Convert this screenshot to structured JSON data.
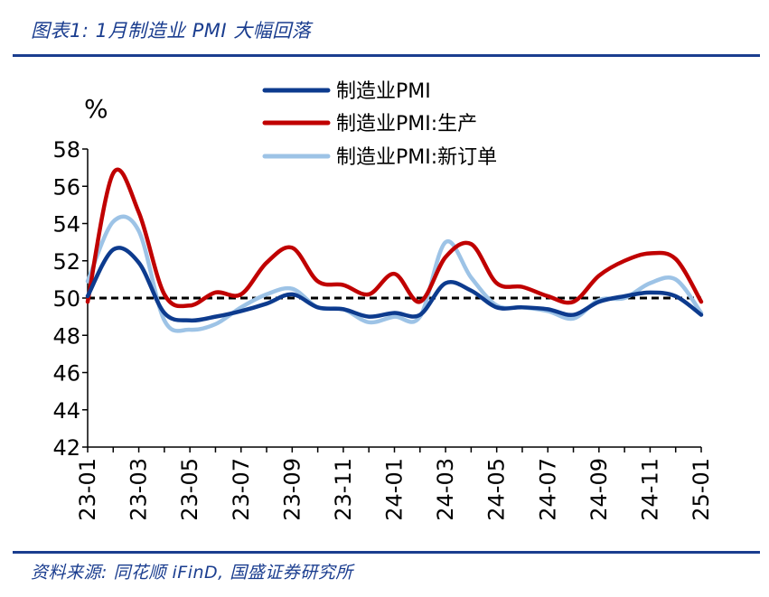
{
  "header": {
    "title": "图表1: 1月制造业 PMI 大幅回落"
  },
  "footer": {
    "source": "资料来源: 同花顺 iFinD, 国盛证券研究所"
  },
  "chart_data": {
    "type": "line",
    "title": "",
    "xlabel": "",
    "ylabel": "%",
    "ylim": [
      42,
      58
    ],
    "yticks": [
      42,
      44,
      46,
      48,
      50,
      52,
      54,
      56,
      58
    ],
    "x": [
      "23-01",
      "23-02",
      "23-03",
      "23-04",
      "23-05",
      "23-06",
      "23-07",
      "23-08",
      "23-09",
      "23-10",
      "23-11",
      "23-12",
      "24-01",
      "24-02",
      "24-03",
      "24-04",
      "24-05",
      "24-06",
      "24-07",
      "24-08",
      "24-09",
      "24-10",
      "24-11",
      "24-12",
      "25-01"
    ],
    "xtick_labels": [
      "23-01",
      "23-03",
      "23-05",
      "23-07",
      "23-09",
      "23-11",
      "24-01",
      "24-03",
      "24-05",
      "24-07",
      "24-09",
      "24-11",
      "25-01"
    ],
    "reference_line": {
      "value": 50,
      "style": "dashed",
      "color": "#000000"
    },
    "legend_position": "top-center",
    "grid": false,
    "series": [
      {
        "name": "制造业PMI",
        "color": "#0d3b8e",
        "values": [
          50.1,
          52.6,
          51.9,
          49.2,
          48.8,
          49.0,
          49.3,
          49.7,
          50.2,
          49.5,
          49.4,
          49.0,
          49.2,
          49.1,
          50.8,
          50.4,
          49.5,
          49.5,
          49.4,
          49.1,
          49.8,
          50.1,
          50.3,
          50.1,
          49.1
        ]
      },
      {
        "name": "制造业PMI:生产",
        "color": "#c00000",
        "values": [
          49.8,
          56.7,
          54.6,
          50.2,
          49.6,
          50.3,
          50.2,
          51.9,
          52.7,
          50.9,
          50.7,
          50.2,
          51.3,
          49.8,
          52.2,
          52.9,
          50.8,
          50.6,
          50.1,
          49.8,
          51.2,
          52.0,
          52.4,
          52.1,
          49.8
        ]
      },
      {
        "name": "制造业PMI:新订单",
        "color": "#9dc3e6",
        "values": [
          50.9,
          54.1,
          53.6,
          48.8,
          48.3,
          48.6,
          49.5,
          50.2,
          50.5,
          49.5,
          49.4,
          48.7,
          49.0,
          49.0,
          53.0,
          51.1,
          49.6,
          49.5,
          49.3,
          48.9,
          49.9,
          50.0,
          50.8,
          51.0,
          49.2
        ]
      }
    ]
  }
}
